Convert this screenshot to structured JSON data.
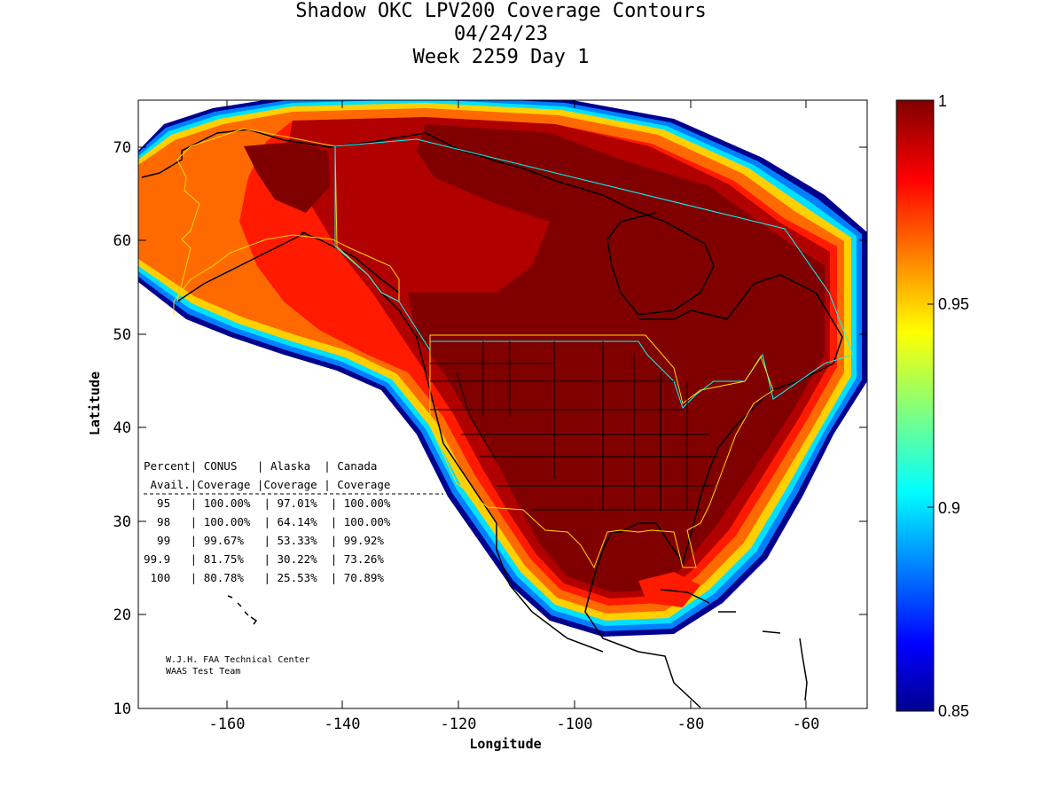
{
  "title": {
    "line1": "Shadow OKC LPV200 Coverage Contours",
    "line2": "04/24/23",
    "line3": "Week 2259 Day 1"
  },
  "chart_data": {
    "type": "heatmap",
    "xlabel": "Longitude",
    "ylabel": "Latitude",
    "xlim": [
      -175,
      -50
    ],
    "ylim": [
      10,
      75
    ],
    "x_ticks": [
      "-160",
      "-140",
      "-120",
      "-100",
      "-80",
      "-60"
    ],
    "y_ticks": [
      "10",
      "20",
      "30",
      "40",
      "50",
      "60",
      "70"
    ],
    "colorbar": {
      "range": [
        0.85,
        1
      ],
      "ticks": [
        "0.85",
        "0.9",
        "0.95",
        "1"
      ],
      "colormap": "jet"
    },
    "coverage_table": {
      "header1": "Percent| CONUS   | Alaska  | Canada",
      "header2": " Avail.|Coverage |Coverage | Coverage",
      "rows": [
        "  95   | 100.00%  | 97.01%  | 100.00%",
        "  98   | 100.00%  | 64.14%  | 100.00%",
        "  99   | 99.67%   | 53.33%  | 99.92%",
        "99.9   | 81.75%   | 30.22%  | 73.26%",
        " 100   | 80.78%   | 25.53%  | 70.89%"
      ]
    },
    "colors": {
      "level_1_00": "#800000",
      "level_0_99": "#b00000",
      "level_0_98": "#ff1a00",
      "level_0_97": "#ff6a00",
      "level_0_95": "#ffd000",
      "level_0_93": "#00e0ff",
      "level_0_90": "#0080ff",
      "level_0_85": "#00008f"
    }
  },
  "credit": {
    "line1": "W.J.H. FAA Technical Center",
    "line2": "WAAS Test Team"
  }
}
